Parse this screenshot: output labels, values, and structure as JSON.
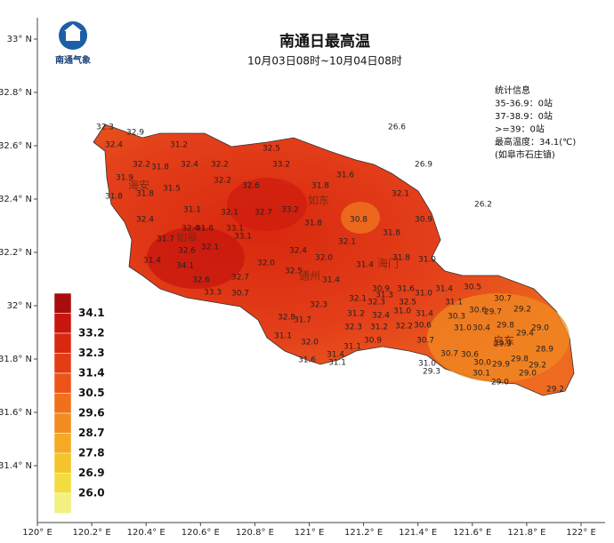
{
  "logo_text": "南通气象",
  "title": "南通日最高温",
  "subtitle": "10月03日08时~10月04日08时",
  "stats": [
    "统计信息",
    "35-36.9：0站",
    "37-38.9：0站",
    ">=39：0站",
    "最高温度：34.1(℃)",
    "(如皋市石庄镇)"
  ],
  "place_names": [
    "海安",
    "如东",
    "如皋",
    "通州",
    "海门",
    "启东"
  ],
  "lat_ticks": [
    "33° N",
    "32.8° N",
    "32.6° N",
    "32.4° N",
    "32.2° N",
    "32° N",
    "31.8° N",
    "31.6° N",
    "31.4° N"
  ],
  "lon_ticks": [
    "120° E",
    "120.2° E",
    "120.4° E",
    "120.6° E",
    "120.8° E",
    "121° E",
    "121.2° E",
    "121.4° E",
    "121.6° E",
    "121.8° E",
    "122° E"
  ],
  "legend": {
    "labels": [
      "34.1",
      "33.2",
      "32.3",
      "31.4",
      "30.5",
      "29.6",
      "28.7",
      "27.8",
      "26.9",
      "26.0"
    ],
    "colors": [
      "#a80c0c",
      "#c8160e",
      "#d82810",
      "#e43c14",
      "#ec5418",
      "#f0701c",
      "#f28c20",
      "#f4aa22",
      "#f4c42a",
      "#f2dc40",
      "#f2f080"
    ]
  },
  "stations": [
    "32.3",
    "32.9",
    "32.4",
    "31.2",
    "32.2",
    "31.8",
    "32.4",
    "32.2",
    "33.2",
    "32.5",
    "31.9",
    "32.2",
    "32.6",
    "31.8",
    "31.6",
    "31.5",
    "31.8",
    "31.8",
    "32.1",
    "26.6",
    "26.9",
    "26.2",
    "31.1",
    "32.1",
    "32.7",
    "33.2",
    "30.8",
    "30.9",
    "32.4",
    "32.4",
    "31.8",
    "33.1",
    "31.8",
    "31.8",
    "31.7",
    "32.6",
    "32.1",
    "33.1",
    "32.1",
    "31.4",
    "34.1",
    "32.0",
    "32.4",
    "32.0",
    "31.4",
    "31.8",
    "31.0",
    "32.5",
    "31.4",
    "32.6",
    "33.3",
    "30.7",
    "32.7",
    "30.9",
    "31.3",
    "31.6",
    "31.0",
    "31.4",
    "30.5",
    "30.7",
    "32.1",
    "32.3",
    "32.5",
    "31.1",
    "30.6",
    "29.7",
    "29.2",
    "31.0",
    "31.4",
    "30.3",
    "31.2",
    "32.4",
    "30.6",
    "31.0",
    "30.4",
    "29.8",
    "29.0",
    "29.4",
    "32.3",
    "32.8",
    "31.7",
    "31.1",
    "32.2",
    "32.3",
    "31.2",
    "30.7",
    "29.9",
    "28.9",
    "30.9",
    "31.1",
    "32.0",
    "31.4",
    "31.6",
    "31.1",
    "30.7",
    "30.6",
    "30.0",
    "29.9",
    "29.8",
    "29.2",
    "31.0",
    "29.3",
    "30.1",
    "29.0",
    "29.0",
    "29.2"
  ]
}
